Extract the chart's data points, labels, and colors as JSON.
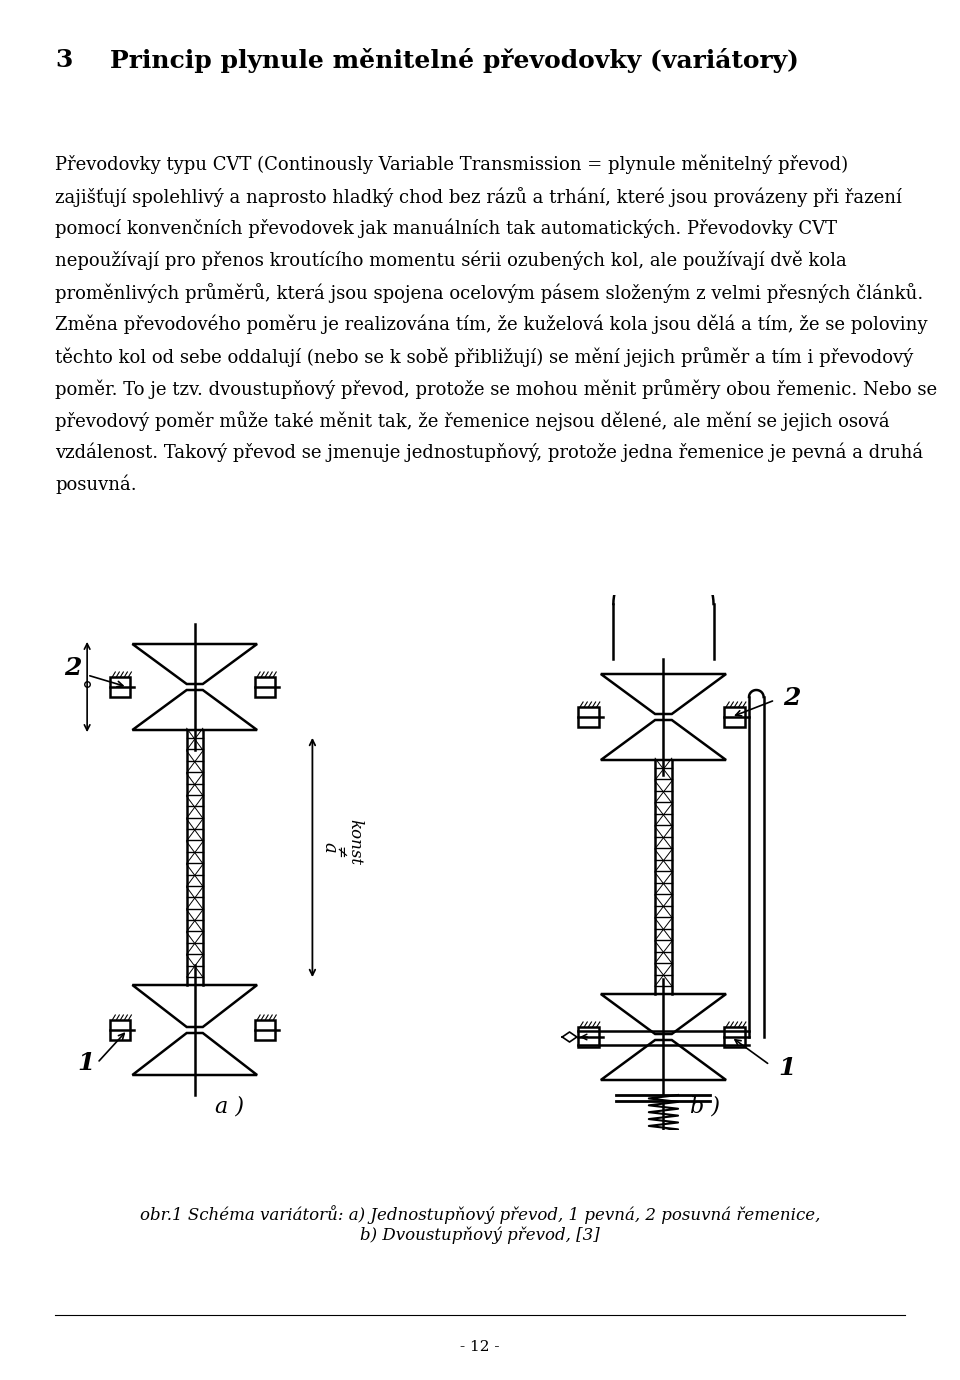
{
  "title_number": "3",
  "title_text": "Princip plynule měnitelné převodovky (variátory)",
  "para1_lines": [
    "Převodovky typu CVT (Continously Variable Transmission = plynule měnitelný převod)",
    "zajišťují spolehlivý a naprosto hladký chod bez rázů a trhání, které jsou provázeny při řazení",
    "pomocí konvenčních převodovek jak manuálních tak automatických. Převodovky CVT",
    "nepoužívají pro přenos kroutícího momentu sérii ozubených kol, ale používají dvě kola",
    "proměnlivých průměrů, která jsou spojena ocelovým pásem složeným z velmi přesných článků."
  ],
  "para2_lines": [
    "Změna převodového poměru je realizována tím, že kuželová kola jsou dělá a tím, že se poloviny",
    "těchto kol od sebe oddalují (nebo se k sobě přibližují) se mění jejich průměr a tím i převodový",
    "poměr. To je tzv. dvoustupňový převod, protože se mohou měnit průměry obou řemenic. Nebo se",
    "převodový poměr může také měnit tak, že řemenice nejsou dělené, ale mění se jejich osová",
    "vzdálenost. Takový převod se jmenuje jednostupňový, protože jedna řemenice je pevná a druhá",
    "posuvná."
  ],
  "caption_line1": "obr.1 Schéma variátorů: a) Jednostupňový převod, 1 pevná, 2 posuvná řemenice,",
  "caption_line2": "b) Dvoustupňový převod, [3]",
  "page_number": "- 12 -",
  "bg_color": "#ffffff",
  "text_color": "#000000",
  "title_fontsize": 18,
  "body_fontsize": 13,
  "caption_fontsize": 12,
  "page_num_fontsize": 11
}
